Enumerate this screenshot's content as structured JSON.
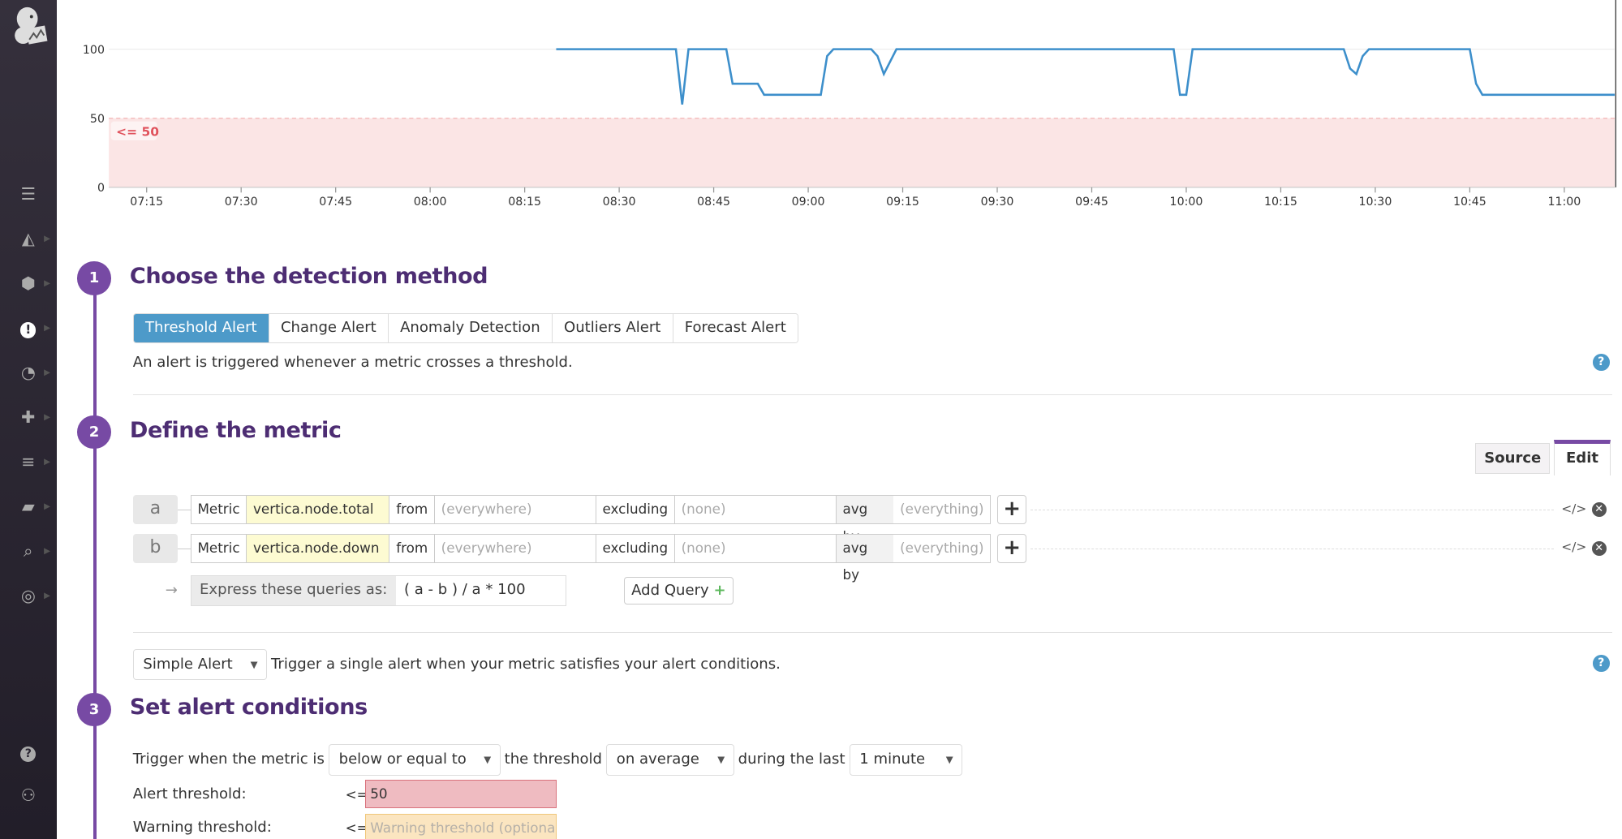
{
  "sidebar": {
    "items": [
      {
        "icon": "list-icon",
        "name": "events"
      },
      {
        "icon": "area-chart-icon",
        "name": "dashboards"
      },
      {
        "icon": "hexagons-icon",
        "name": "infrastructure"
      },
      {
        "icon": "exclamation-icon",
        "name": "monitors",
        "active": true
      },
      {
        "icon": "gauge-icon",
        "name": "apm"
      },
      {
        "icon": "puzzle-icon",
        "name": "integrations"
      },
      {
        "icon": "filter-icon",
        "name": "logs"
      },
      {
        "icon": "notebook-icon",
        "name": "notebooks"
      },
      {
        "icon": "search-list-icon",
        "name": "synthetics"
      },
      {
        "icon": "globe-icon",
        "name": "network"
      }
    ],
    "bottom": [
      {
        "icon": "help-icon"
      },
      {
        "icon": "team-icon"
      }
    ]
  },
  "chart_data": {
    "type": "line",
    "x_ticks": [
      "07:15",
      "07:30",
      "07:45",
      "08:00",
      "08:15",
      "08:30",
      "08:45",
      "09:00",
      "09:15",
      "09:30",
      "09:45",
      "10:00",
      "10:15",
      "10:30",
      "10:45",
      "11:00"
    ],
    "y_ticks": [
      "0",
      "50",
      "100"
    ],
    "ylim": [
      0,
      100
    ],
    "xlim": [
      "07:09",
      "11:08"
    ],
    "threshold": {
      "label": "<= 50",
      "value": 50,
      "color": "#fbe5e5"
    },
    "line_color": "#3d8fcb",
    "series": [
      {
        "points": [
          [
            "08:20",
            100
          ],
          [
            "08:39",
            100
          ],
          [
            "08:40",
            60
          ],
          [
            "08:41",
            100
          ],
          [
            "08:47",
            100
          ],
          [
            "08:48",
            75
          ],
          [
            "08:52",
            75
          ],
          [
            "08:53",
            67
          ],
          [
            "09:02",
            67
          ],
          [
            "09:03",
            95
          ],
          [
            "09:04",
            100
          ],
          [
            "09:10",
            100
          ],
          [
            "09:11",
            95
          ],
          [
            "09:12",
            82
          ],
          [
            "09:14",
            100
          ],
          [
            "09:58",
            100
          ],
          [
            "09:59",
            67
          ],
          [
            "10:00",
            67
          ],
          [
            "10:01",
            100
          ],
          [
            "10:25",
            100
          ],
          [
            "10:26",
            86
          ],
          [
            "10:27",
            82
          ],
          [
            "10:28",
            95
          ],
          [
            "10:29",
            100
          ],
          [
            "10:45",
            100
          ],
          [
            "10:46",
            75
          ],
          [
            "10:47",
            67
          ],
          [
            "11:08",
            67
          ]
        ]
      }
    ]
  },
  "step1": {
    "number": "1",
    "title": "Choose the detection method",
    "tabs": [
      "Threshold Alert",
      "Change Alert",
      "Anomaly Detection",
      "Outliers Alert",
      "Forecast Alert"
    ],
    "active_tab": 0,
    "description": "An alert is triggered whenever a metric crosses a threshold."
  },
  "step2": {
    "number": "2",
    "title": "Define the metric",
    "view_tabs": [
      "Source",
      "Edit"
    ],
    "active_view": "Edit",
    "queries": [
      {
        "letter": "a",
        "metric_label": "Metric",
        "metric": "vertica.node.total",
        "from_label": "from",
        "from_ph": "(everywhere)",
        "excluding_label": "excluding",
        "excluding_ph": "(none)",
        "avg_label": "avg by",
        "avg_ph": "(everything)"
      },
      {
        "letter": "b",
        "metric_label": "Metric",
        "metric": "vertica.node.down",
        "from_label": "from",
        "from_ph": "(everywhere)",
        "excluding_label": "excluding",
        "excluding_ph": "(none)",
        "avg_label": "avg by",
        "avg_ph": "(everything)"
      }
    ],
    "express_label": "Express these queries as:",
    "express_value": "( a - b ) / a * 100",
    "add_query": "Add Query",
    "alert_type": "Simple Alert",
    "alert_type_desc": "Trigger a single alert when your metric satisfies your alert conditions."
  },
  "step3": {
    "number": "3",
    "title": "Set alert conditions",
    "trigger_prefix": "Trigger when the metric is",
    "comparison": "below or equal to",
    "threshold_text": "the threshold",
    "aggregation": "on average",
    "during_text": "during the last",
    "window": "1 minute",
    "alert_label": "Alert threshold:",
    "alert_op": "<=",
    "alert_value": "50",
    "warning_label": "Warning threshold:",
    "warning_op": "<=",
    "warning_placeholder": "Warning threshold (optional"
  }
}
